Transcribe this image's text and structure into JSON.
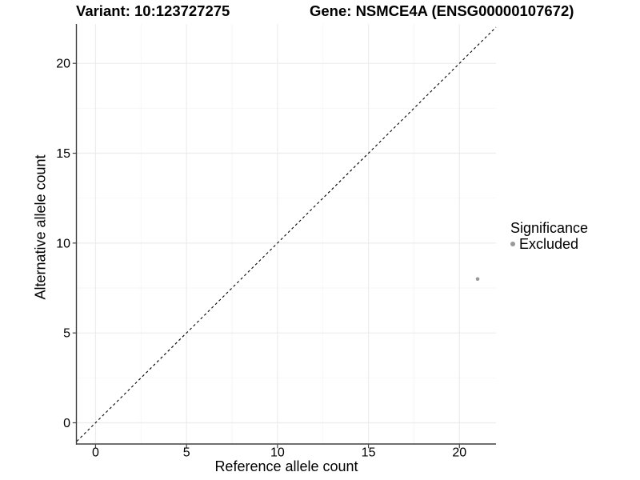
{
  "chart_data": {
    "type": "scatter",
    "titles": {
      "left": "Variant: 10:123727275",
      "right": "Gene: NSMCE4A (ENSG00000107672)"
    },
    "xlabel": "Reference allele count",
    "ylabel": "Alternative allele count",
    "xlim": [
      -1.03,
      22.01
    ],
    "ylim": [
      -1.18,
      22.19
    ],
    "xticks": [
      0,
      5,
      10,
      15,
      20
    ],
    "yticks": [
      0,
      5,
      10,
      15,
      20
    ],
    "minor_interval": 2.5,
    "grid": "major and minor, very light gray",
    "identity_line": {
      "style": "dashed",
      "color": "#000000",
      "from": -1.03,
      "to": 22.01
    },
    "series": [
      {
        "name": "Excluded",
        "color": "#999999",
        "points": [
          {
            "x": 21,
            "y": 8
          }
        ]
      }
    ],
    "legend": {
      "title": "Significance",
      "position": "right",
      "items": [
        {
          "label": "Excluded",
          "color": "#999999"
        }
      ]
    },
    "style": {
      "grid_major_color": "#ececec",
      "grid_minor_color": "#f5f5f5",
      "axis_line_color": "#404040",
      "text_color": "#000000",
      "point_radius": 2.3,
      "point_color": "#999999"
    }
  }
}
